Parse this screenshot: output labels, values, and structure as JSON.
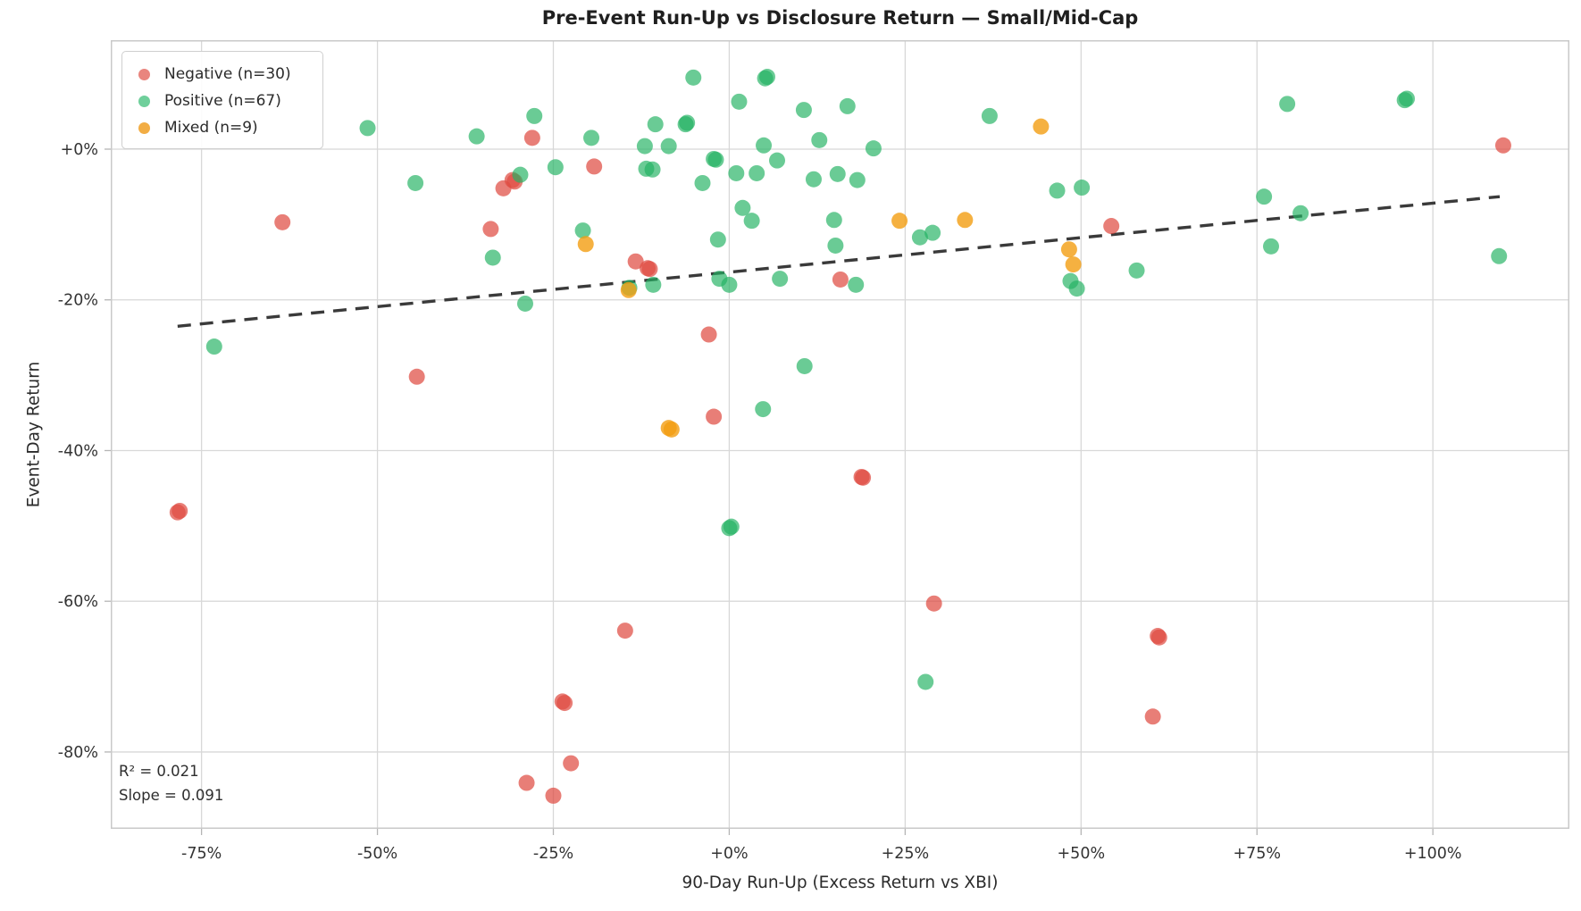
{
  "chart_data": {
    "type": "scatter",
    "title": "Pre-Event Run-Up vs Disclosure Return — Small/Mid-Cap",
    "xlabel": "90-Day Run-Up (Excess Return vs XBI)",
    "ylabel": "Event-Day Return",
    "xlim": [
      -87.9,
      119.4
    ],
    "ylim": [
      -90.2,
      14.46
    ],
    "grid": true,
    "legend_position": "upper-left",
    "x_axis": {
      "tick_values": [
        -75,
        -50,
        -25,
        0,
        25,
        50,
        75,
        100
      ],
      "tick_labels": [
        "-75%",
        "-50%",
        "-25%",
        "+0%",
        "+25%",
        "+50%",
        "+75%",
        "+100%"
      ]
    },
    "y_axis": {
      "tick_values": [
        0,
        -20,
        -40,
        -60,
        -80
      ],
      "tick_labels": [
        "+0%",
        "-20%",
        "-40%",
        "-60%",
        "-80%"
      ]
    },
    "series": [
      {
        "name": "Negative (n=30)",
        "legend_color": "#e9857e",
        "color": "rgba(223,76,66,0.72)",
        "points": [
          [
            -63.5,
            -9.7
          ],
          [
            -78.4,
            -48.2
          ],
          [
            -78.1,
            -48.0
          ],
          [
            -28.0,
            1.5
          ],
          [
            -30.8,
            -4.1
          ],
          [
            -30.5,
            -4.3
          ],
          [
            -32.1,
            -5.2
          ],
          [
            -33.9,
            -10.6
          ],
          [
            -19.2,
            -2.3
          ],
          [
            -13.3,
            -14.9
          ],
          [
            -11.6,
            -15.8
          ],
          [
            -11.3,
            -15.9
          ],
          [
            15.8,
            -17.3
          ],
          [
            110.0,
            0.5
          ],
          [
            54.3,
            -10.2
          ],
          [
            -44.4,
            -30.2
          ],
          [
            -2.9,
            -24.6
          ],
          [
            -2.2,
            -35.5
          ],
          [
            18.8,
            -43.5
          ],
          [
            19.0,
            -43.6
          ],
          [
            29.1,
            -60.3
          ],
          [
            60.9,
            -64.6
          ],
          [
            61.1,
            -64.8
          ],
          [
            60.2,
            -75.3
          ],
          [
            -14.8,
            -63.9
          ],
          [
            -23.7,
            -73.3
          ],
          [
            -23.4,
            -73.5
          ],
          [
            -22.5,
            -81.5
          ],
          [
            -28.8,
            -84.1
          ],
          [
            -25.0,
            -85.8
          ]
        ]
      },
      {
        "name": "Positive (n=67)",
        "legend_color": "#6fcf9b",
        "color": "rgba(36,178,99,0.68)",
        "points": [
          [
            -51.4,
            2.8
          ],
          [
            -35.9,
            1.7
          ],
          [
            -27.7,
            4.4
          ],
          [
            -19.6,
            1.5
          ],
          [
            -10.5,
            3.3
          ],
          [
            -6.2,
            3.3
          ],
          [
            -6.0,
            3.5
          ],
          [
            -12.0,
            0.4
          ],
          [
            -8.6,
            0.4
          ],
          [
            -11.8,
            -2.6
          ],
          [
            -10.9,
            -2.7
          ],
          [
            -24.7,
            -2.4
          ],
          [
            -29.7,
            -3.4
          ],
          [
            -44.6,
            -4.5
          ],
          [
            -20.8,
            -10.8
          ],
          [
            -33.6,
            -14.4
          ],
          [
            -10.8,
            -18.0
          ],
          [
            -29.0,
            -20.5
          ],
          [
            -5.1,
            9.5
          ],
          [
            5.1,
            9.4
          ],
          [
            5.4,
            9.6
          ],
          [
            1.4,
            6.3
          ],
          [
            10.6,
            5.2
          ],
          [
            16.8,
            5.7
          ],
          [
            37.0,
            4.4
          ],
          [
            12.8,
            1.2
          ],
          [
            4.9,
            0.5
          ],
          [
            20.5,
            0.1
          ],
          [
            -2.2,
            -1.3
          ],
          [
            -1.9,
            -1.4
          ],
          [
            6.8,
            -1.5
          ],
          [
            1.0,
            -3.2
          ],
          [
            3.9,
            -3.2
          ],
          [
            -3.8,
            -4.5
          ],
          [
            12.0,
            -4.0
          ],
          [
            15.4,
            -3.3
          ],
          [
            18.2,
            -4.1
          ],
          [
            1.9,
            -7.8
          ],
          [
            3.2,
            -9.5
          ],
          [
            14.9,
            -9.4
          ],
          [
            27.1,
            -11.7
          ],
          [
            28.9,
            -11.1
          ],
          [
            -1.6,
            -12.0
          ],
          [
            15.1,
            -12.8
          ],
          [
            46.6,
            -5.5
          ],
          [
            -1.4,
            -17.2
          ],
          [
            0.0,
            -18.0
          ],
          [
            7.2,
            -17.2
          ],
          [
            18.0,
            -18.0
          ],
          [
            48.5,
            -17.5
          ],
          [
            79.3,
            6.0
          ],
          [
            96.0,
            6.5
          ],
          [
            96.3,
            6.7
          ],
          [
            50.1,
            -5.1
          ],
          [
            76.0,
            -6.3
          ],
          [
            81.2,
            -8.5
          ],
          [
            77.0,
            -12.9
          ],
          [
            57.9,
            -16.1
          ],
          [
            49.4,
            -18.5
          ],
          [
            109.4,
            -14.2
          ],
          [
            0.0,
            -50.3
          ],
          [
            0.3,
            -50.1
          ],
          [
            10.7,
            -28.8
          ],
          [
            4.8,
            -34.5
          ],
          [
            27.9,
            -70.7
          ],
          [
            -73.2,
            -26.2
          ],
          [
            -14.2,
            -18.4
          ]
        ]
      },
      {
        "name": "Mixed (n=9)",
        "legend_color": "#f2ad44",
        "color": "rgba(242,158,18,0.8)",
        "points": [
          [
            44.3,
            3.0
          ],
          [
            -20.4,
            -12.6
          ],
          [
            24.2,
            -9.5
          ],
          [
            33.5,
            -9.4
          ],
          [
            -8.6,
            -37.0
          ],
          [
            -8.2,
            -37.2
          ],
          [
            48.3,
            -13.3
          ],
          [
            48.9,
            -15.3
          ],
          [
            -14.3,
            -18.7
          ]
        ]
      }
    ],
    "trend_line": {
      "x1": -78.4,
      "y1": -23.5,
      "x2": 109.5,
      "y2": -6.3,
      "color": "#3a3a3a",
      "style": "dashed"
    },
    "annotation": {
      "line1": "R² = 0.021",
      "line2": "Slope = 0.091"
    },
    "style": {
      "grid_color": "#d8d8d8",
      "border_color": "#c9c9c9",
      "tick_label_color": "#333333",
      "point_radius": 9
    }
  }
}
